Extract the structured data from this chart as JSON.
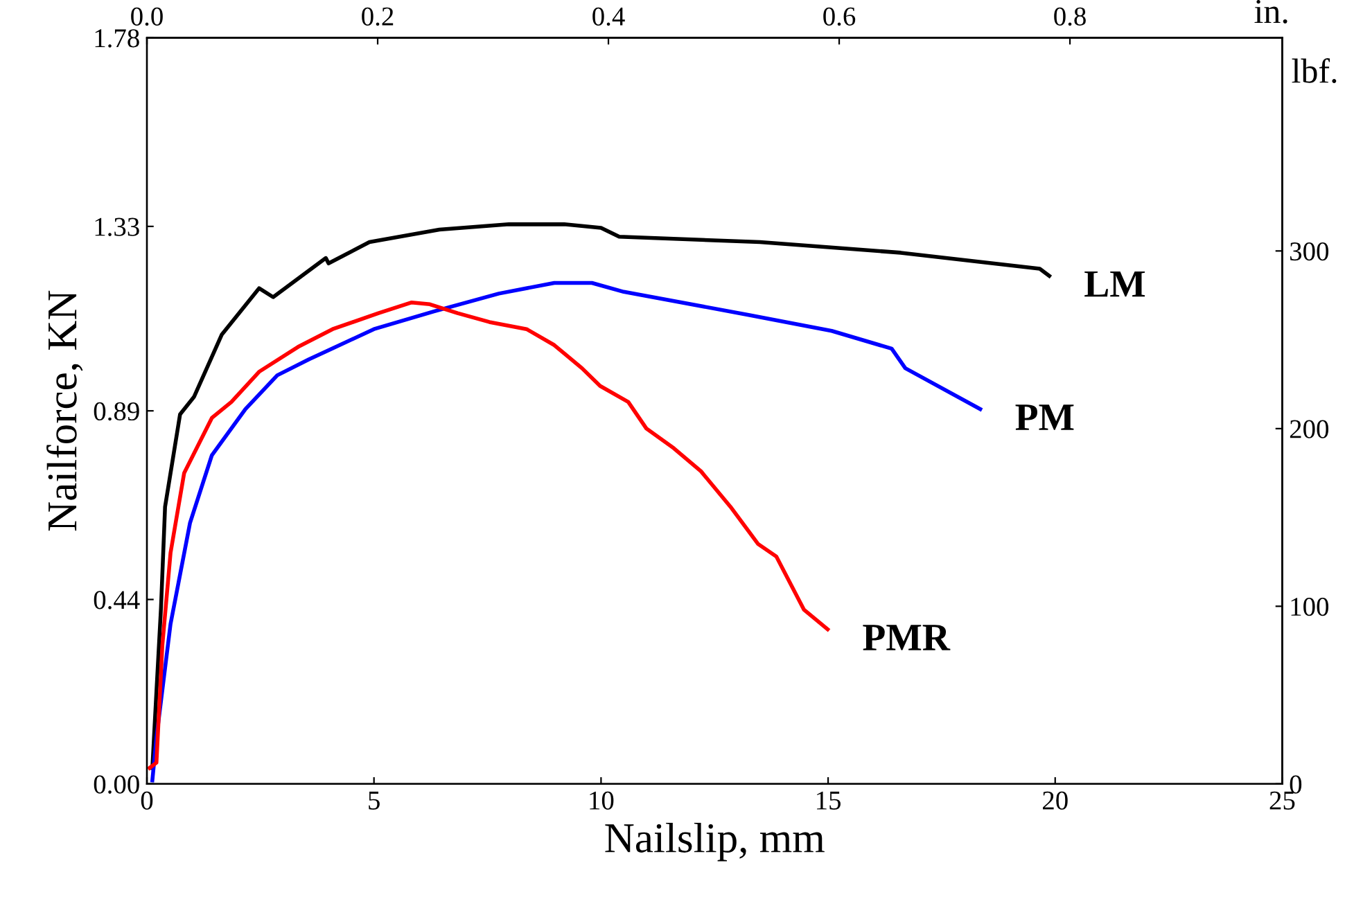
{
  "chart_data": {
    "type": "line",
    "xlabel": "Nailslip, mm",
    "ylabel": "Nailforce, KN",
    "y2label": "lbf.",
    "x2label": "in.",
    "xlim": [
      0,
      25
    ],
    "xticks": [
      0,
      5,
      10,
      15,
      20,
      25
    ],
    "x2lim": [
      0,
      0.984
    ],
    "x2ticks": [
      {
        "value": 0,
        "label": "0.0"
      },
      0.2,
      0.4,
      0.6,
      0.8
    ],
    "ylim": [
      0,
      1.78
    ],
    "yticks": [
      {
        "value": 0,
        "label": "0.00"
      },
      0.44,
      0.89,
      1.33,
      1.78
    ],
    "y2lim": [
      0,
      420
    ],
    "y2ticks": [
      0,
      100,
      200,
      300
    ],
    "grid": false,
    "legend": false,
    "marker": "none",
    "line_style": "solid",
    "series": [
      {
        "name": "LM",
        "color": "#000000",
        "axis": "y2",
        "x": [
          0.12,
          0.21,
          0.31,
          0.4,
          0.73,
          1.04,
          1.65,
          2.47,
          2.78,
          3.94,
          4.0,
          4.9,
          6.44,
          7.97,
          9.19,
          10.0,
          10.4,
          13.5,
          16.6,
          19.66,
          19.87
        ],
        "values": [
          9,
          52,
          99,
          156,
          208,
          218,
          253,
          279,
          274,
          296,
          293,
          305,
          312,
          315,
          315,
          313,
          308,
          305,
          299,
          290,
          286
        ]
      },
      {
        "name": "PM",
        "color": "#0000ff",
        "axis": "y2",
        "x": [
          0.12,
          0.21,
          0.52,
          0.95,
          1.43,
          2.17,
          2.87,
          3.57,
          5.0,
          6.32,
          7.75,
          8.97,
          9.8,
          10.5,
          13.25,
          15.08,
          16.4,
          16.7,
          18.35
        ],
        "values": [
          2,
          26,
          90,
          147,
          185,
          211,
          230,
          239,
          256,
          266,
          276,
          282,
          282,
          277,
          264,
          255,
          245,
          234,
          211
        ]
      },
      {
        "name": "PMR",
        "color": "#ff0000",
        "axis": "y2",
        "x": [
          0.06,
          0.21,
          0.34,
          0.52,
          0.82,
          1.43,
          1.86,
          2.47,
          3.33,
          4.09,
          5.1,
          5.83,
          6.23,
          6.84,
          7.54,
          8.36,
          8.97,
          9.58,
          9.98,
          10.6,
          11.0,
          11.6,
          12.2,
          12.85,
          13.46,
          13.86,
          14.47,
          14.99
        ],
        "values": [
          9,
          12,
          78,
          130,
          175,
          206,
          215,
          232,
          246,
          256,
          265,
          271,
          270,
          265,
          260,
          256,
          247,
          234,
          224,
          215,
          200,
          189,
          176,
          156,
          135,
          128,
          98,
          87
        ]
      }
    ]
  }
}
